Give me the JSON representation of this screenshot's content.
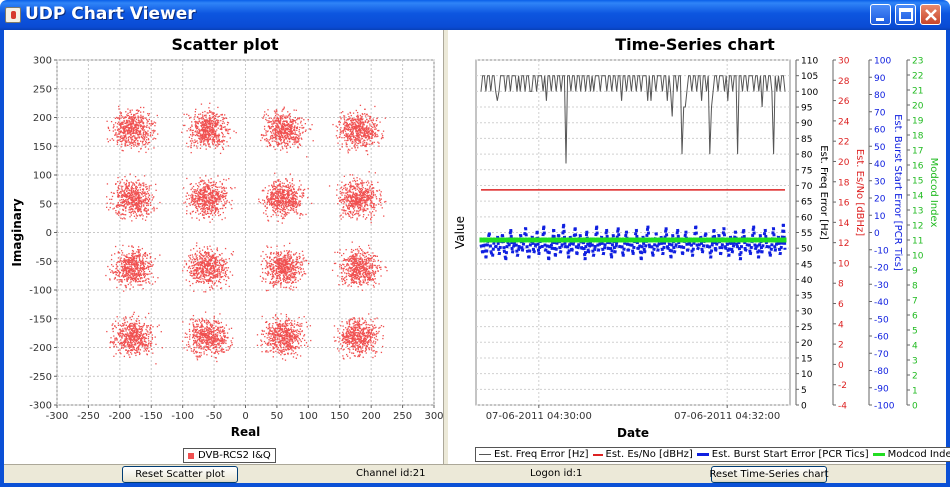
{
  "window": {
    "title": "UDP Chart Viewer",
    "controls": [
      "minimize-icon",
      "maximize-icon",
      "close-icon"
    ]
  },
  "colors": {
    "titlebar": "#0b50d6",
    "scatter_points": "#f05050",
    "freq_series": "#555555",
    "esno_series": "#dd2222",
    "burst_series": "#1020e0",
    "modcod_series": "#22dd22"
  },
  "scatter": {
    "title": "Scatter plot",
    "legend_label": "DVB-RCS2 I&Q"
  },
  "timeseries": {
    "title": "Time-Series chart",
    "legend": [
      {
        "label": "Est. Freq Error [Hz]"
      },
      {
        "label": "Est. Es/No [dBHz]"
      },
      {
        "label": "Est. Burst Start Error [PCR Tics]"
      },
      {
        "label": "Modcod Index"
      }
    ]
  },
  "statusbar": {
    "reset_scatter_label": "Reset Scatter plot",
    "channel_label": "Channel id:21",
    "logon_label": "Logon id:1",
    "reset_timeseries_label": "Reset Time-Series chart"
  },
  "chart_data": [
    {
      "type": "scatter",
      "title": "Scatter plot",
      "xlabel": "Real",
      "ylabel": "Imaginary",
      "xlim": [
        -300,
        300
      ],
      "ylim": [
        -300,
        300
      ],
      "xticks": [
        -300,
        -250,
        -200,
        -150,
        -100,
        -50,
        0,
        50,
        100,
        150,
        200,
        250,
        300
      ],
      "yticks": [
        -300,
        -250,
        -200,
        -150,
        -100,
        -50,
        0,
        50,
        100,
        150,
        200,
        250,
        300
      ],
      "grid": true,
      "legend_position": "bottom",
      "series": [
        {
          "name": "DVB-RCS2 I&Q",
          "cluster_centers": [
            [
              -180,
              180
            ],
            [
              -60,
              180
            ],
            [
              60,
              180
            ],
            [
              180,
              180
            ],
            [
              -180,
              60
            ],
            [
              -60,
              60
            ],
            [
              60,
              60
            ],
            [
              180,
              60
            ],
            [
              -180,
              -60
            ],
            [
              -60,
              -60
            ],
            [
              60,
              -60
            ],
            [
              180,
              -60
            ],
            [
              -180,
              -180
            ],
            [
              -60,
              -180
            ],
            [
              60,
              -180
            ],
            [
              180,
              -180
            ]
          ],
          "cluster_spread": 26
        }
      ]
    },
    {
      "type": "line",
      "title": "Time-Series chart",
      "xlabel": "Date",
      "ylabel": "Value",
      "x_ticks": [
        "07-06-2011 04:30:00",
        "07-06-2011 04:32:00"
      ],
      "grid": true,
      "legend_position": "bottom",
      "axes": [
        {
          "label": "Est. Freq Error [Hz]",
          "range": [
            0,
            110
          ],
          "step": 5,
          "color": "#000000"
        },
        {
          "label": "Est. Es/No [dBHz]",
          "range": [
            -4,
            30
          ],
          "step": 2,
          "color": "#dd2222"
        },
        {
          "label": "Est. Burst Start Error [PCR Tics]",
          "range": [
            -100,
            100
          ],
          "step": 10,
          "color": "#1020e0"
        },
        {
          "label": "Modcod Index",
          "range": [
            0,
            23
          ],
          "step": 1,
          "color": "#22bb22"
        }
      ],
      "series": [
        {
          "name": "Est. Freq Error [Hz]",
          "axis": 0,
          "values": [
            100,
            105,
            105,
            100,
            105,
            105,
            100,
            105,
            105,
            100,
            97,
            100,
            105,
            105,
            105,
            100,
            105,
            105,
            100,
            105,
            105,
            105,
            100,
            105,
            100,
            105,
            105,
            100,
            105,
            105,
            100,
            100,
            105,
            105,
            100,
            105,
            105,
            105,
            100,
            105,
            97,
            105,
            105,
            100,
            105,
            105,
            100,
            105,
            105,
            100,
            105,
            105,
            77,
            105,
            105,
            100,
            105,
            105,
            100,
            105,
            105,
            100,
            105,
            105,
            100,
            105,
            105,
            100,
            105,
            100,
            105,
            105,
            105,
            100,
            105,
            105,
            105,
            100,
            105,
            105,
            100,
            105,
            105,
            100,
            105,
            105,
            97,
            105,
            105,
            100,
            105,
            105,
            100,
            105,
            105,
            100,
            105,
            105,
            100,
            105,
            105,
            105,
            97,
            105,
            97,
            105,
            105,
            100,
            105,
            105,
            105,
            100,
            105,
            105,
            97,
            105,
            100,
            92,
            105,
            105,
            100,
            105,
            105,
            80,
            95,
            95,
            100,
            105,
            105,
            100,
            105,
            105,
            100,
            105,
            105,
            97,
            105,
            105,
            100,
            105,
            80,
            95,
            100,
            105,
            105,
            100,
            105,
            105,
            105,
            100,
            105,
            97,
            105,
            105,
            100,
            105,
            105,
            80,
            105,
            105,
            100,
            105,
            105,
            100,
            105,
            105,
            105,
            100,
            105,
            105,
            100,
            105,
            95,
            105,
            105,
            100,
            105,
            105,
            100,
            80,
            105,
            100,
            105,
            100,
            105,
            105,
            100
          ]
        },
        {
          "name": "Est. Es/No [dBHz]",
          "axis": 1,
          "values": [
            17.2,
            17.2
          ]
        },
        {
          "name": "Est. Burst Start Error [PCR Tics]",
          "axis": 2,
          "values": [
            -7,
            -12,
            -3,
            -15,
            -6,
            0,
            -11,
            -14,
            -4,
            -9,
            -2,
            -13,
            -6,
            -1,
            -10,
            -16,
            -5,
            -8,
            2,
            -12,
            -7,
            -3,
            -14,
            -9,
            -1,
            -11,
            -5,
            3,
            -10,
            -15,
            -6,
            -2,
            -12,
            -8,
            1,
            -13,
            -4,
            -9,
            4,
            -11,
            -7,
            -16,
            -3,
            -10,
            2,
            -14,
            -6,
            -1,
            -12,
            -8,
            5,
            -9,
            -4,
            -15,
            -2,
            -11,
            -6,
            3,
            -13,
            -8,
            -1,
            -10,
            -5,
            -16,
            1,
            -12,
            -7,
            -3,
            -14,
            -9,
            4,
            -11,
            -6,
            -2,
            -13,
            -8,
            2,
            -10,
            -5,
            -15,
            -1,
            -12,
            -7,
            3,
            -9,
            -4,
            -14,
            -6,
            1,
            -11,
            -8,
            -3,
            -13,
            -5,
            2,
            -10,
            -7,
            -16,
            -2,
            -12,
            -6,
            4,
            -9,
            -4,
            -14,
            -8,
            0,
            -11,
            -5,
            -2,
            -13,
            -7,
            3,
            -10,
            -6,
            -15,
            -1,
            -12,
            -8,
            2,
            -9,
            -4,
            -13,
            -6,
            1,
            -11,
            -7,
            -3,
            -14,
            -5,
            4,
            -10,
            -8,
            -2,
            -12,
            -6,
            0,
            -9,
            -4,
            -15,
            -7,
            2,
            -11,
            -5,
            -1,
            -13,
            -8,
            3,
            -10,
            -6,
            -14,
            -2,
            -12,
            -7,
            1,
            -9,
            -5,
            -16,
            -4,
            2,
            -11,
            -8,
            -3,
            -13,
            -6,
            4,
            -10,
            -7,
            -15,
            -1,
            -12,
            -5,
            2,
            -9,
            -4,
            -14,
            -8,
            3,
            -11,
            -6,
            -2,
            -13,
            -7,
            5,
            -10
          ]
        },
        {
          "name": "Modcod Index",
          "axis": 3,
          "values": [
            11,
            11,
            11,
            11,
            11,
            11,
            11,
            11,
            11,
            11,
            11,
            11,
            11,
            11,
            11,
            11,
            11,
            11,
            11,
            11,
            11,
            11,
            11,
            11,
            11,
            11,
            11,
            11,
            11,
            11,
            11,
            11,
            11,
            11,
            11,
            11,
            11,
            11,
            11,
            11,
            11,
            11,
            11,
            11,
            11,
            11,
            11,
            11,
            11,
            11,
            11,
            11,
            11,
            11,
            11,
            11,
            11,
            11,
            11,
            11,
            11,
            11,
            11,
            11,
            11,
            11,
            11,
            11,
            11,
            11,
            11,
            11,
            11,
            11,
            11,
            11,
            11,
            11,
            11,
            11,
            11,
            11,
            11,
            11,
            11,
            11,
            11,
            11,
            11,
            11,
            11,
            11,
            11,
            11,
            11,
            11,
            11,
            11,
            11,
            11,
            11,
            11,
            11,
            11,
            11,
            11,
            11,
            11,
            11,
            11,
            11,
            11,
            11,
            11,
            11,
            11,
            11,
            11,
            11,
            11,
            11,
            11,
            11,
            11,
            11,
            11,
            11,
            11,
            11,
            11,
            11,
            11,
            11,
            11,
            11,
            11,
            11,
            11,
            11,
            11,
            11,
            11,
            11,
            11,
            11,
            11,
            11,
            11,
            11,
            11,
            11,
            11,
            11,
            11,
            11,
            11,
            11,
            11,
            11,
            11,
            11,
            11,
            11,
            11,
            11,
            11,
            11,
            11,
            11,
            11,
            11,
            11,
            11,
            11,
            11,
            11,
            11,
            11,
            11,
            11,
            11,
            11,
            11,
            11,
            11,
            11,
            11,
            11,
            11
          ]
        }
      ]
    }
  ]
}
